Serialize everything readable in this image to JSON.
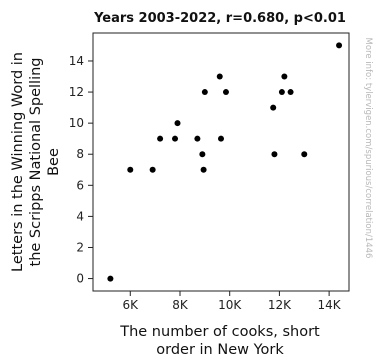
{
  "chart_data": {
    "type": "scatter",
    "title": "Years 2003-2022, r=0.680, p<0.01",
    "xlabel_lines": [
      "The number of cooks, short",
      "order in New York"
    ],
    "ylabel_lines": [
      "Letters in the Winning Word in",
      "the Scripps National Spelling",
      "Bee"
    ],
    "watermark": "More info: tylervigen.com/spurious/correlation/1446",
    "xlim": [
      4500,
      14800
    ],
    "ylim": [
      -0.8,
      15.8
    ],
    "x_ticks": [
      {
        "value": 6000,
        "label": "6K"
      },
      {
        "value": 8000,
        "label": "8K"
      },
      {
        "value": 10000,
        "label": "10K"
      },
      {
        "value": 12000,
        "label": "12K"
      },
      {
        "value": 14000,
        "label": "14K"
      }
    ],
    "y_ticks": [
      {
        "value": 0,
        "label": "0"
      },
      {
        "value": 2,
        "label": "2"
      },
      {
        "value": 4,
        "label": "4"
      },
      {
        "value": 6,
        "label": "6"
      },
      {
        "value": 8,
        "label": "8"
      },
      {
        "value": 10,
        "label": "10"
      },
      {
        "value": 12,
        "label": "12"
      },
      {
        "value": 14,
        "label": "14"
      }
    ],
    "grid": false,
    "marker_color": "#000000",
    "points": [
      {
        "x": 5200,
        "y": 0
      },
      {
        "x": 6000,
        "y": 7
      },
      {
        "x": 6900,
        "y": 7
      },
      {
        "x": 7200,
        "y": 9
      },
      {
        "x": 7800,
        "y": 9
      },
      {
        "x": 7900,
        "y": 10
      },
      {
        "x": 8700,
        "y": 9
      },
      {
        "x": 8900,
        "y": 8
      },
      {
        "x": 8950,
        "y": 7
      },
      {
        "x": 9000,
        "y": 12
      },
      {
        "x": 9600,
        "y": 13
      },
      {
        "x": 9650,
        "y": 9
      },
      {
        "x": 9850,
        "y": 12
      },
      {
        "x": 11750,
        "y": 11
      },
      {
        "x": 11800,
        "y": 8
      },
      {
        "x": 12100,
        "y": 12
      },
      {
        "x": 12200,
        "y": 13
      },
      {
        "x": 12450,
        "y": 12
      },
      {
        "x": 13000,
        "y": 8
      },
      {
        "x": 14400,
        "y": 15
      }
    ]
  }
}
